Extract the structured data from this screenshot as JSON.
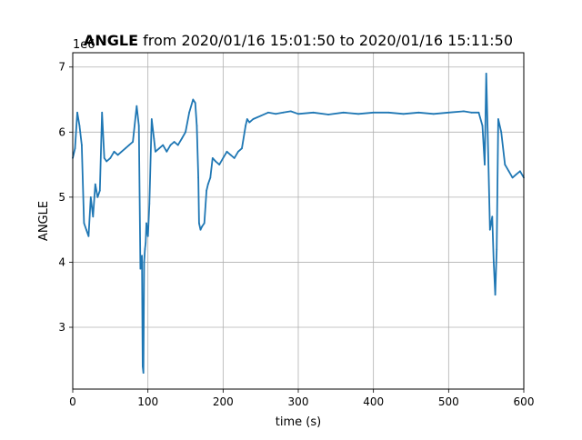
{
  "chart_data": {
    "type": "line",
    "title_bold": "ANGLE",
    "title_rest": " from 2020/01/16 15:01:50 to 2020/01/16 15:11:50",
    "xlabel": "time (s)",
    "ylabel": "ANGLE",
    "y_offset_label": "1e6",
    "xlim": [
      0,
      600
    ],
    "ylim": [
      2.05,
      7.22
    ],
    "y_scale_note": "values shown in units of 1e6",
    "grid": true,
    "legend": "none",
    "x_ticks": [
      "0",
      "100",
      "200",
      "300",
      "400",
      "500",
      "600"
    ],
    "y_ticks": [
      "3",
      "4",
      "5",
      "6",
      "7"
    ],
    "series_color": "#1f77b4",
    "series": [
      {
        "x": [
          0,
          3,
          6,
          9,
          12,
          15,
          18,
          21,
          24,
          27,
          30,
          33,
          36,
          39,
          42,
          45,
          50,
          55,
          60,
          65,
          70,
          75,
          80,
          85,
          88,
          90,
          92,
          93,
          94,
          95,
          96,
          97,
          98,
          100,
          102,
          105,
          108,
          110,
          115,
          120,
          125,
          130,
          135,
          140,
          145,
          150,
          155,
          160,
          163,
          165,
          167,
          168,
          170,
          172,
          175,
          178,
          180,
          183,
          186,
          190,
          195,
          200,
          205,
          210,
          215,
          220,
          225,
          230,
          232,
          235,
          240,
          250,
          260,
          270,
          280,
          290,
          300,
          320,
          340,
          360,
          380,
          400,
          420,
          440,
          460,
          480,
          500,
          520,
          530,
          540,
          545,
          548,
          550,
          552,
          555,
          558,
          560,
          562,
          564,
          566,
          570,
          575,
          580,
          585,
          590,
          595,
          600
        ],
        "values": [
          5.6,
          5.75,
          6.3,
          6.1,
          5.8,
          4.6,
          4.5,
          4.4,
          5.0,
          4.7,
          5.2,
          5.0,
          5.1,
          6.3,
          5.6,
          5.55,
          5.6,
          5.7,
          5.65,
          5.7,
          5.75,
          5.8,
          5.85,
          6.4,
          6.1,
          3.9,
          4.1,
          2.4,
          2.3,
          4.0,
          4.2,
          4.3,
          4.6,
          4.4,
          4.9,
          6.2,
          5.9,
          5.7,
          5.75,
          5.8,
          5.7,
          5.8,
          5.85,
          5.8,
          5.9,
          6.0,
          6.3,
          6.5,
          6.45,
          6.1,
          5.3,
          4.6,
          4.5,
          4.55,
          4.6,
          5.1,
          5.2,
          5.3,
          5.6,
          5.55,
          5.5,
          5.6,
          5.7,
          5.65,
          5.6,
          5.7,
          5.75,
          6.1,
          6.2,
          6.15,
          6.2,
          6.25,
          6.3,
          6.28,
          6.3,
          6.32,
          6.28,
          6.3,
          6.27,
          6.3,
          6.28,
          6.3,
          6.3,
          6.28,
          6.3,
          6.28,
          6.3,
          6.32,
          6.3,
          6.3,
          6.1,
          5.5,
          6.9,
          6.0,
          4.5,
          4.7,
          4.0,
          3.5,
          4.2,
          6.2,
          6.0,
          5.5,
          5.4,
          5.3,
          5.35,
          5.4,
          5.3
        ]
      }
    ]
  }
}
